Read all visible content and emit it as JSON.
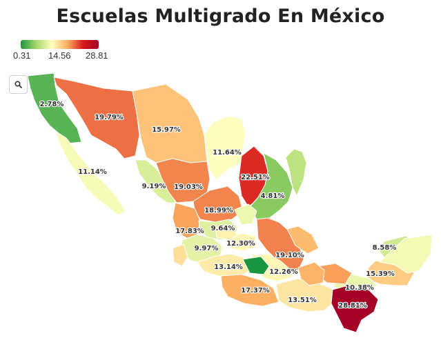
{
  "title": "Escuelas Multigrado En México",
  "legend": {
    "min_label": "0.31",
    "mid_label": "14.56",
    "max_label": "28.81",
    "min": 0.31,
    "mid": 14.56,
    "max": 28.81,
    "colors": [
      "#1a9641",
      "#a6d96a",
      "#ffffbf",
      "#fdae61",
      "#d7191c",
      "#a50026"
    ]
  },
  "search_icon": "magnifier-icon",
  "chart_data": {
    "type": "choropleth",
    "regions": [
      {
        "label": "2.78%",
        "value": 2.78
      },
      {
        "label": "19.79%",
        "value": 19.79
      },
      {
        "label": "15.97%",
        "value": 15.97
      },
      {
        "label": "11.64%",
        "value": 11.64
      },
      {
        "label": "11.14%",
        "value": 11.14
      },
      {
        "label": "9.19%",
        "value": 9.19
      },
      {
        "label": "19.03%",
        "value": 19.03
      },
      {
        "label": "22.51%",
        "value": 22.51
      },
      {
        "label": "4.81%",
        "value": 4.81
      },
      {
        "label": "18.99%",
        "value": 18.99
      },
      {
        "label": "17.83%",
        "value": 17.83
      },
      {
        "label": "9.64%",
        "value": 9.64
      },
      {
        "label": "12.30%",
        "value": 12.3
      },
      {
        "label": "9.97%",
        "value": 9.97
      },
      {
        "label": "19.10%",
        "value": 19.1
      },
      {
        "label": "13.14%",
        "value": 13.14
      },
      {
        "label": "12.26%",
        "value": 12.26
      },
      {
        "label": "8.58%",
        "value": 8.58
      },
      {
        "label": "15.39%",
        "value": 15.39
      },
      {
        "label": "10.38%",
        "value": 10.38
      },
      {
        "label": "17.37%",
        "value": 17.37
      },
      {
        "label": "13.51%",
        "value": 13.51
      },
      {
        "label": "28.81%",
        "value": 28.81
      },
      {
        "value": 7.5
      },
      {
        "value": 11.0
      },
      {
        "value": 0.31
      },
      {
        "value": 14.0
      },
      {
        "value": 16.5
      },
      {
        "value": 18.0
      },
      {
        "value": 10.5
      },
      {
        "value": 12.8
      },
      {
        "value": 17.0
      }
    ]
  }
}
